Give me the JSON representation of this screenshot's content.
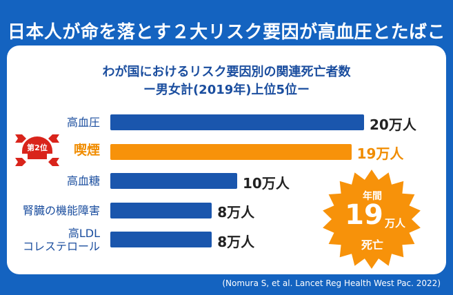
{
  "headline": "日本人が命を落とす２大リスク要因が高血圧とたばこ",
  "chart_data": {
    "type": "bar",
    "orientation": "horizontal",
    "title": "わが国におけるリスク要因別の関連死亡者数",
    "subtitle": "ー男女計(2019年)上位5位ー",
    "categories": [
      "高血圧",
      "喫煙",
      "高血糖",
      "腎臓の機能障害",
      "高LDL\nコレステロール"
    ],
    "values": [
      20,
      19,
      10,
      8,
      8
    ],
    "value_labels": [
      "20万人",
      "19万人",
      "10万人",
      "8万人",
      "8万人"
    ],
    "unit": "万人",
    "highlight_index": 1,
    "xlim": [
      0,
      20
    ],
    "grid": false,
    "legend": "none"
  },
  "badge": {
    "label": "第2位",
    "icon": "skull-icon"
  },
  "burst": {
    "top": "年間",
    "number": "19",
    "unit": "万人",
    "bottom": "死亡"
  },
  "source": "(Nomura S, et al. Lancet Reg Health West Pac. 2022)",
  "colors": {
    "bar": "#1a56ad",
    "highlight": "#f7920a",
    "background": "#1463c0",
    "burst": "#f7920a"
  }
}
